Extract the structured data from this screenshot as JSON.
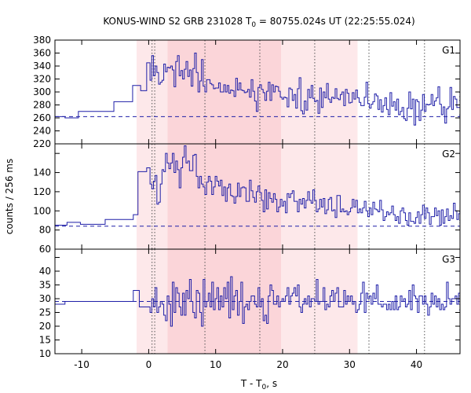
{
  "title": {
    "prefix": "KONUS-WIND S2 GRB 231028 T",
    "sub": "0",
    "suffix": " = 80755.024s UT (22:25:55.024)"
  },
  "xlabel": {
    "prefix": "T - T",
    "sub": "0",
    "suffix": ", s"
  },
  "ylabel": "counts / 256 ms",
  "colors": {
    "line": "#1f1fa8",
    "shade_light": "#fde8ea",
    "shade_dark": "#fbd5d9",
    "vline": "#555555"
  },
  "chart_data": {
    "type": "line",
    "x_range": [
      -14,
      46.5
    ],
    "x_ticks": [
      -10,
      0,
      10,
      20,
      30,
      40
    ],
    "x_tick_labels": [
      "-10",
      "0",
      "10",
      "20",
      "30",
      "40"
    ],
    "shaded_regions": [
      {
        "x0": -1.8,
        "x1": 2.8,
        "shade": "light"
      },
      {
        "x0": 2.8,
        "x1": 19.8,
        "shade": "dark"
      },
      {
        "x0": 19.8,
        "x1": 31.2,
        "shade": "light"
      }
    ],
    "vlines": [
      0.5,
      0.9,
      8.4,
      16.6,
      24.8,
      32.9,
      41.2
    ],
    "panels": [
      {
        "label": "G1",
        "y_range": [
          220,
          380
        ],
        "y_ticks": [
          220,
          240,
          260,
          280,
          300,
          320,
          340,
          360,
          380
        ],
        "y_tick_labels": [
          "220",
          "240",
          "260",
          "280",
          "300",
          "320",
          "340",
          "360",
          "380"
        ],
        "background": 262,
        "pre": [
          {
            "x0": -14,
            "x1": -12.5,
            "y": 262
          },
          {
            "x0": -12.5,
            "x1": -10.5,
            "y": 260
          },
          {
            "x0": -10.5,
            "x1": -5.2,
            "y": 270
          },
          {
            "x0": -5.2,
            "x1": -2.4,
            "y": 285
          },
          {
            "x0": -2.4,
            "x1": -1.2,
            "y": 310
          },
          {
            "x0": -1.2,
            "x1": -0.3,
            "y": 302
          },
          {
            "x0": -0.3,
            "x1": 0.2,
            "y": 345
          }
        ],
        "series": {
          "name": "G1",
          "start": 0.2,
          "step": 0.256,
          "values": [
            318,
            356,
            325,
            340,
            330,
            312,
            315,
            318,
            343,
            331,
            338,
            337,
            340,
            334,
            308,
            347,
            356,
            325,
            333,
            320,
            335,
            347,
            324,
            334,
            309,
            336,
            360,
            330,
            300,
            317,
            350,
            309,
            300,
            319,
            319,
            313,
            311,
            305,
            306,
            306,
            314,
            300,
            300,
            311,
            300,
            310,
            298,
            303,
            302,
            293,
            321,
            303,
            314,
            303,
            302,
            299,
            300,
            304,
            292,
            319,
            301,
            286,
            270,
            307,
            311,
            304,
            299,
            287,
            301,
            315,
            287,
            311,
            300,
            309,
            308,
            301,
            292,
            289,
            292,
            291,
            277,
            306,
            304,
            287,
            296,
            275,
            305,
            322,
            271,
            266,
            286,
            272,
            304,
            291,
            310,
            290,
            285,
            287,
            267,
            306,
            276,
            300,
            291,
            313,
            289,
            284,
            292,
            290,
            305,
            290,
            288,
            296,
            300,
            279,
            304,
            298,
            283,
            284,
            299,
            289,
            303,
            291,
            284,
            279,
            279,
            292,
            315,
            282,
            275,
            281,
            285,
            297,
            294,
            273,
            288,
            269,
            279,
            291,
            273,
            265,
            299,
            278,
            285,
            272,
            289,
            265,
            270,
            276,
            259,
            256,
            275,
            300,
            274,
            289,
            249,
            288,
            285,
            256,
            272,
            296,
            270,
            281,
            280,
            281,
            296,
            279,
            286,
            291,
            308,
            281,
            265,
            277,
            252,
            274,
            277,
            307,
            273,
            293,
            289,
            276,
            276,
            269,
            290,
            265,
            293,
            301,
            300,
            280,
            287,
            266,
            299,
            287,
            308,
            299,
            269,
            278,
            277,
            264,
            298,
            285,
            286,
            286,
            262,
            292,
            307,
            290,
            300,
            264,
            289,
            268,
            303,
            289,
            276,
            262,
            261,
            275,
            279,
            276,
            273,
            257,
            269,
            260,
            301,
            297,
            274,
            280,
            278,
            273,
            264,
            280,
            277,
            261,
            262,
            286,
            257,
            292,
            281
          ]
        }
      },
      {
        "label": "G2",
        "y_range": [
          60,
          170
        ],
        "y_ticks": [
          60,
          80,
          100,
          120,
          140,
          160
        ],
        "y_tick_labels": [
          "60",
          "80",
          "100",
          "120",
          "140",
          "160"
        ],
        "background": 84,
        "pre": [
          {
            "x0": -14,
            "x1": -12.2,
            "y": 85
          },
          {
            "x0": -12.2,
            "x1": -10.2,
            "y": 88
          },
          {
            "x0": -10.2,
            "x1": -6.5,
            "y": 86
          },
          {
            "x0": -6.5,
            "x1": -2.3,
            "y": 91
          },
          {
            "x0": -2.3,
            "x1": -1.6,
            "y": 96
          },
          {
            "x0": -1.6,
            "x1": -0.3,
            "y": 141
          },
          {
            "x0": -0.3,
            "x1": 0.2,
            "y": 145
          }
        ],
        "series": {
          "name": "G2",
          "start": 0.2,
          "step": 0.256,
          "values": [
            128,
            123,
            131,
            137,
            107,
            109,
            128,
            143,
            141,
            160,
            150,
            144,
            150,
            160,
            140,
            152,
            143,
            124,
            145,
            156,
            168,
            150,
            152,
            142,
            142,
            158,
            159,
            136,
            124,
            136,
            128,
            125,
            117,
            130,
            136,
            131,
            117,
            125,
            136,
            131,
            126,
            132,
            116,
            125,
            110,
            124,
            128,
            116,
            115,
            108,
            115,
            129,
            115,
            124,
            125,
            124,
            110,
            110,
            132,
            121,
            114,
            109,
            120,
            126,
            119,
            111,
            99,
            122,
            102,
            119,
            113,
            109,
            118,
            112,
            99,
            104,
            112,
            105,
            110,
            98,
            118,
            114,
            118,
            121,
            110,
            110,
            99,
            112,
            107,
            113,
            103,
            111,
            120,
            111,
            108,
            122,
            111,
            99,
            102,
            112,
            104,
            113,
            97,
            101,
            112,
            114,
            100,
            101,
            93,
            116,
            116,
            99,
            102,
            99,
            100,
            96,
            99,
            103,
            112,
            104,
            111,
            98,
            102,
            98,
            103,
            110,
            100,
            94,
            103,
            96,
            109,
            102,
            101,
            99,
            111,
            101,
            90,
            94,
            99,
            96,
            98,
            105,
            96,
            90,
            94,
            87,
            100,
            103,
            98,
            90,
            85,
            98,
            89,
            89,
            87,
            93,
            99,
            87,
            96,
            106,
            92,
            103,
            98,
            86,
            94,
            94,
            103,
            95,
            100,
            85,
            101,
            87,
            94,
            102,
            90,
            95,
            92,
            108,
            100,
            91,
            97,
            91,
            98,
            89,
            88,
            99,
            92,
            90,
            103,
            97,
            94,
            94,
            90,
            91,
            96,
            93,
            84,
            95,
            92,
            98,
            87,
            88,
            86,
            96,
            92,
            100,
            100,
            94,
            95,
            88,
            82,
            84,
            99,
            93,
            95,
            81,
            95,
            96,
            95,
            98,
            96,
            82,
            87,
            93,
            90,
            89,
            98,
            85,
            92,
            89,
            82,
            96,
            100,
            100,
            94,
            101,
            92
          ]
        }
      },
      {
        "label": "G3",
        "y_range": [
          10,
          48
        ],
        "y_ticks": [
          10,
          15,
          20,
          25,
          30,
          35,
          40,
          45
        ],
        "y_tick_labels": [
          "10",
          "15",
          "20",
          "25",
          "30",
          "35",
          "40",
          "45"
        ],
        "background": 29,
        "pre": [
          {
            "x0": -14,
            "x1": -12.5,
            "y": 28
          },
          {
            "x0": -12.5,
            "x1": -5.2,
            "y": 29
          },
          {
            "x0": -5.2,
            "x1": -2.3,
            "y": 29
          },
          {
            "x0": -2.3,
            "x1": -1.4,
            "y": 33
          },
          {
            "x0": -1.4,
            "x1": 0.2,
            "y": 27
          }
        ],
        "series": {
          "name": "G3",
          "start": 0.2,
          "step": 0.256,
          "values": [
            25,
            30,
            27,
            34,
            25,
            27,
            29,
            28,
            24,
            22,
            31,
            28,
            20,
            36,
            25,
            34,
            32,
            27,
            24,
            32,
            24,
            33,
            30,
            37,
            29,
            25,
            23,
            33,
            32,
            25,
            20,
            37,
            27,
            29,
            32,
            27,
            36,
            26,
            30,
            34,
            26,
            31,
            27,
            34,
            30,
            36,
            23,
            38,
            26,
            31,
            33,
            24,
            29,
            36,
            21,
            27,
            28,
            26,
            29,
            31,
            31,
            28,
            27,
            34,
            27,
            30,
            22,
            24,
            21,
            31,
            35,
            33,
            28,
            28,
            31,
            27,
            29,
            30,
            29,
            31,
            34,
            28,
            31,
            32,
            34,
            31,
            35,
            27,
            25,
            28,
            30,
            28,
            31,
            27,
            30,
            30,
            29,
            37,
            28,
            29,
            29,
            34,
            26,
            28,
            27,
            31,
            33,
            29,
            32,
            34,
            27,
            27,
            27,
            33,
            28,
            31,
            29,
            31,
            28,
            29,
            25,
            26,
            28,
            32,
            36,
            25,
            32,
            30,
            31,
            28,
            32,
            30,
            35,
            28,
            28,
            27,
            28,
            28,
            26,
            28,
            26,
            29,
            26,
            31,
            26,
            27,
            31,
            29,
            30,
            27,
            28,
            33,
            26,
            35,
            31,
            30,
            25,
            31,
            31,
            28,
            31,
            28,
            24,
            27,
            32,
            28,
            31,
            27,
            30,
            26,
            28,
            26,
            27,
            36,
            30,
            28,
            30,
            30,
            31,
            28,
            32,
            29,
            26,
            32,
            27,
            28,
            31,
            29,
            32,
            28,
            32,
            31,
            26,
            26,
            32,
            29,
            28,
            26,
            33,
            28,
            30,
            26,
            32,
            27,
            34,
            29,
            25,
            29,
            30,
            29,
            27,
            29,
            34,
            27,
            28,
            27,
            28,
            32,
            29,
            28,
            29,
            29,
            29,
            30,
            27,
            33,
            30,
            28,
            29,
            29,
            28,
            28,
            32,
            30,
            27,
            26,
            28
          ]
        }
      }
    ]
  }
}
